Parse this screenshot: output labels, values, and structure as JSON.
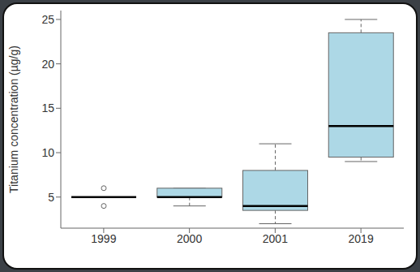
{
  "chart_data": {
    "type": "boxplot",
    "y_label": "Titanium concentration (µg/g)",
    "categories": [
      "1999",
      "2000",
      "2001",
      "2019"
    ],
    "min": [
      5,
      4,
      2,
      9
    ],
    "q1": [
      5,
      5,
      3.5,
      9.5
    ],
    "median": [
      5,
      5,
      4,
      13
    ],
    "q3": [
      5,
      6,
      8,
      23.5
    ],
    "max": [
      5,
      6,
      11,
      25
    ],
    "outliers": [
      [
        4,
        6
      ],
      [],
      [],
      []
    ],
    "color": "#add8e6",
    "ylim": [
      1.5,
      26
    ],
    "yticks": [
      5,
      10,
      15,
      20,
      25
    ]
  }
}
